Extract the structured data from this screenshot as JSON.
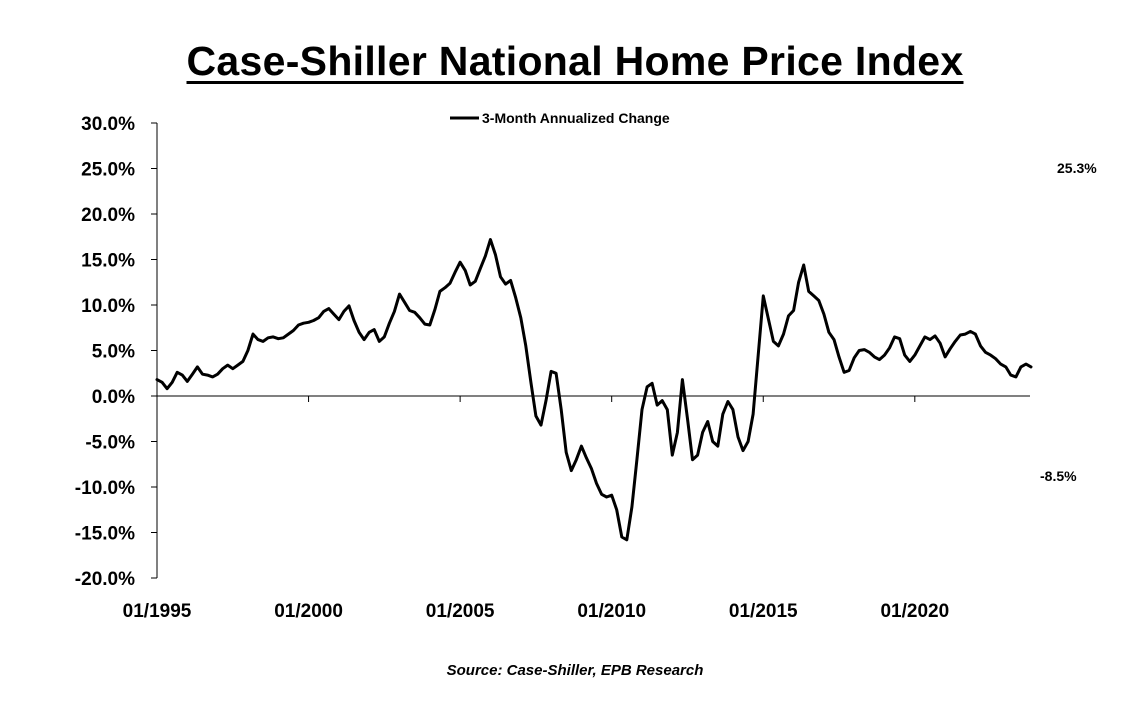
{
  "title": "Case-Shiller National Home Price Index",
  "source": "Source: Case-Shiller, EPB Research",
  "chart_data": {
    "type": "line",
    "title": "Case-Shiller National Home Price Index",
    "xlabel": "",
    "ylabel": "",
    "ylim": [
      -20,
      30
    ],
    "xlim": [
      "1995-01",
      "2022-11"
    ],
    "grid": false,
    "legend": "top-center",
    "line_color": "#000000",
    "y_ticks": [
      "30.0%",
      "25.0%",
      "20.0%",
      "15.0%",
      "10.0%",
      "5.0%",
      "0.0%",
      "-5.0%",
      "-10.0%",
      "-15.0%",
      "-20.0%"
    ],
    "x_ticks": [
      "01/1995",
      "01/2000",
      "01/2005",
      "01/2010",
      "01/2015",
      "01/2020"
    ],
    "annotations": [
      "25.3%",
      "-8.5%"
    ],
    "series": [
      {
        "name": "3-Month Annualized Change",
        "points": [
          [
            "1995-01",
            1.8
          ],
          [
            "1995-03",
            1.5
          ],
          [
            "1995-05",
            0.8
          ],
          [
            "1995-07",
            1.5
          ],
          [
            "1995-09",
            2.6
          ],
          [
            "1995-11",
            2.3
          ],
          [
            "1996-01",
            1.6
          ],
          [
            "1996-03",
            2.4
          ],
          [
            "1996-05",
            3.2
          ],
          [
            "1996-07",
            2.4
          ],
          [
            "1996-09",
            2.3
          ],
          [
            "1996-11",
            2.1
          ],
          [
            "1997-01",
            2.4
          ],
          [
            "1997-03",
            3.0
          ],
          [
            "1997-05",
            3.4
          ],
          [
            "1997-07",
            3.0
          ],
          [
            "1997-09",
            3.4
          ],
          [
            "1997-11",
            3.8
          ],
          [
            "1998-01",
            5.0
          ],
          [
            "1998-03",
            6.8
          ],
          [
            "1998-05",
            6.2
          ],
          [
            "1998-07",
            6.0
          ],
          [
            "1998-09",
            6.4
          ],
          [
            "1998-11",
            6.5
          ],
          [
            "1999-01",
            6.3
          ],
          [
            "1999-03",
            6.4
          ],
          [
            "1999-05",
            6.8
          ],
          [
            "1999-07",
            7.2
          ],
          [
            "1999-09",
            7.8
          ],
          [
            "1999-11",
            8.0
          ],
          [
            "2000-01",
            8.1
          ],
          [
            "2000-03",
            8.3
          ],
          [
            "2000-05",
            8.6
          ],
          [
            "2000-07",
            9.3
          ],
          [
            "2000-09",
            9.6
          ],
          [
            "2000-11",
            9.0
          ],
          [
            "2001-01",
            8.4
          ],
          [
            "2001-03",
            9.3
          ],
          [
            "2001-05",
            9.9
          ],
          [
            "2001-07",
            8.3
          ],
          [
            "2001-09",
            7.0
          ],
          [
            "2001-11",
            6.2
          ],
          [
            "2002-01",
            7.0
          ],
          [
            "2002-03",
            7.3
          ],
          [
            "2002-05",
            6.0
          ],
          [
            "2002-07",
            6.5
          ],
          [
            "2002-09",
            8.0
          ],
          [
            "2002-11",
            9.3
          ],
          [
            "2003-01",
            11.2
          ],
          [
            "2003-03",
            10.3
          ],
          [
            "2003-05",
            9.4
          ],
          [
            "2003-07",
            9.2
          ],
          [
            "2003-09",
            8.6
          ],
          [
            "2003-11",
            7.9
          ],
          [
            "2004-01",
            7.8
          ],
          [
            "2004-03",
            9.5
          ],
          [
            "2004-05",
            11.5
          ],
          [
            "2004-07",
            11.9
          ],
          [
            "2004-09",
            12.4
          ],
          [
            "2004-11",
            13.6
          ],
          [
            "2005-01",
            14.7
          ],
          [
            "2005-03",
            13.8
          ],
          [
            "2005-05",
            12.2
          ],
          [
            "2005-07",
            12.6
          ],
          [
            "2005-09",
            14.0
          ],
          [
            "2005-11",
            15.4
          ],
          [
            "2006-01",
            17.2
          ],
          [
            "2006-03",
            15.5
          ],
          [
            "2006-05",
            13.1
          ],
          [
            "2006-07",
            12.3
          ],
          [
            "2006-09",
            12.7
          ],
          [
            "2006-11",
            10.8
          ],
          [
            "2007-01",
            8.6
          ],
          [
            "2007-03",
            5.5
          ],
          [
            "2007-05",
            1.5
          ],
          [
            "2007-07",
            -2.2
          ],
          [
            "2007-09",
            -3.2
          ],
          [
            "2007-11",
            -0.5
          ],
          [
            "2008-01",
            2.7
          ],
          [
            "2008-03",
            2.5
          ],
          [
            "2008-05",
            -1.5
          ],
          [
            "2008-07",
            -6.2
          ],
          [
            "2008-09",
            -8.2
          ],
          [
            "2008-11",
            -7.0
          ],
          [
            "2009-01",
            -5.5
          ],
          [
            "2009-03",
            -6.8
          ],
          [
            "2009-05",
            -8.0
          ],
          [
            "2009-07",
            -9.6
          ],
          [
            "2009-09",
            -10.8
          ],
          [
            "2009-11",
            -11.1
          ],
          [
            "2010-01",
            -10.9
          ],
          [
            "2010-03",
            -12.5
          ],
          [
            "2010-05",
            -15.5
          ],
          [
            "2010-07",
            -15.8
          ],
          [
            "2010-09",
            -12.2
          ],
          [
            "2010-11",
            -7.0
          ],
          [
            "2011-01",
            -1.5
          ],
          [
            "2011-03",
            1.0
          ],
          [
            "2011-05",
            1.4
          ],
          [
            "2011-07",
            -1.0
          ],
          [
            "2011-09",
            -0.5
          ],
          [
            "2011-11",
            -1.5
          ],
          [
            "2012-01",
            -6.5
          ],
          [
            "2012-03",
            -4.0
          ],
          [
            "2012-05",
            1.8
          ],
          [
            "2012-07",
            -2.5
          ],
          [
            "2012-09",
            -7.0
          ],
          [
            "2012-11",
            -6.5
          ],
          [
            "2013-01",
            -4.0
          ],
          [
            "2013-03",
            -2.8
          ],
          [
            "2013-05",
            -5.0
          ],
          [
            "2013-07",
            -5.5
          ],
          [
            "2013-09",
            -2.0
          ],
          [
            "2013-11",
            -0.6
          ],
          [
            "2014-01",
            -1.5
          ],
          [
            "2014-03",
            -4.5
          ],
          [
            "2014-05",
            -6.0
          ],
          [
            "2014-07",
            -5.0
          ],
          [
            "2014-09",
            -2.0
          ],
          [
            "2014-11",
            4.5
          ],
          [
            "2015-01",
            11.0
          ],
          [
            "2015-03",
            8.5
          ],
          [
            "2015-05",
            6.0
          ],
          [
            "2015-07",
            5.5
          ],
          [
            "2015-09",
            6.8
          ],
          [
            "2015-11",
            8.8
          ],
          [
            "2016-01",
            9.4
          ],
          [
            "2016-03",
            12.5
          ],
          [
            "2016-05",
            14.4
          ],
          [
            "2016-07",
            11.5
          ],
          [
            "2016-09",
            11.0
          ],
          [
            "2016-11",
            10.5
          ],
          [
            "2017-01",
            9.0
          ],
          [
            "2017-03",
            7.0
          ],
          [
            "2017-05",
            6.2
          ],
          [
            "2017-07",
            4.3
          ],
          [
            "2017-09",
            2.6
          ],
          [
            "2017-11",
            2.8
          ],
          [
            "2018-01",
            4.2
          ],
          [
            "2018-03",
            5.0
          ],
          [
            "2018-05",
            5.1
          ],
          [
            "2018-07",
            4.8
          ],
          [
            "2018-09",
            4.3
          ],
          [
            "2018-11",
            4.0
          ],
          [
            "2019-01",
            4.5
          ],
          [
            "2019-03",
            5.3
          ],
          [
            "2019-05",
            6.5
          ],
          [
            "2019-07",
            6.3
          ],
          [
            "2019-09",
            4.5
          ],
          [
            "2019-11",
            3.8
          ],
          [
            "2020-01",
            4.5
          ],
          [
            "2020-03",
            5.5
          ],
          [
            "2020-05",
            6.5
          ],
          [
            "2020-07",
            6.2
          ],
          [
            "2020-09",
            6.6
          ],
          [
            "2020-11",
            5.8
          ],
          [
            "2021-01",
            4.3
          ],
          [
            "2021-03",
            5.2
          ],
          [
            "2021-05",
            6.0
          ],
          [
            "2021-07",
            6.7
          ],
          [
            "2021-09",
            6.8
          ],
          [
            "2021-11",
            7.1
          ],
          [
            "2022-01",
            6.8
          ],
          [
            "2022-03",
            5.5
          ],
          [
            "2022-05",
            4.8
          ],
          [
            "2022-07",
            4.5
          ],
          [
            "2022-09",
            4.1
          ],
          [
            "2022-11",
            3.5
          ],
          [
            "2023-01",
            3.2
          ],
          [
            "2023-03",
            2.3
          ],
          [
            "2023-05",
            2.1
          ],
          [
            "2023-07",
            3.2
          ],
          [
            "2023-09",
            3.5
          ],
          [
            "2023-11",
            3.2
          ]
        ]
      }
    ]
  }
}
